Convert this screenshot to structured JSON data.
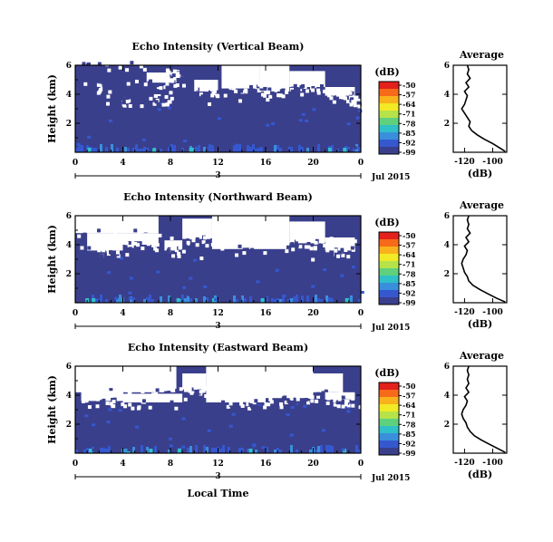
{
  "chart_data": [
    {
      "type": "heatmap",
      "title": "Echo Intensity (Vertical Beam)",
      "ylabel": "Height (km)",
      "x_ticks": [
        "0",
        "4",
        "8",
        "12",
        "16",
        "20",
        "0"
      ],
      "y_ticks": [
        "6",
        "4",
        "2"
      ],
      "xlim": [
        0,
        24
      ],
      "ylim": [
        0,
        6
      ],
      "date_marker": "3",
      "date_label": "Jul 2015",
      "colorbar": {
        "unit": "(dB)",
        "labels": [
          "-50",
          "-57",
          "-64",
          "-71",
          "-78",
          "-85",
          "-92",
          "-99"
        ]
      },
      "noise_top_km": 3.7,
      "gaps": [
        [
          0.5,
          5.8,
          6,
          6
        ],
        [
          2,
          1.8,
          4.5,
          5.2
        ],
        [
          4.5,
          3.8,
          3.6,
          4.2
        ],
        [
          6,
          8.5,
          4.8,
          5.5
        ],
        [
          8,
          6.5,
          3.7,
          4.1
        ],
        [
          9,
          7.5,
          5.5,
          6
        ],
        [
          10,
          12,
          4.2,
          5
        ],
        [
          12.3,
          15.5,
          4.4,
          6
        ],
        [
          15.5,
          18,
          4.2,
          6
        ],
        [
          18,
          21,
          4.5,
          5.6
        ],
        [
          21,
          23.5,
          3.9,
          4.5
        ],
        [
          23,
          23.8,
          3.5,
          3.9
        ]
      ],
      "average": {
        "title": "Average",
        "xlabel": "(dB)",
        "x_ticks": [
          "-120",
          "-100"
        ],
        "y_ticks": [
          "6",
          "4",
          "2"
        ],
        "xlim": [
          -128,
          -90
        ],
        "ylim": [
          0,
          6
        ],
        "x": [
          -91,
          -95,
          -100,
          -106,
          -111,
          -115,
          -117,
          -116,
          -118,
          -120,
          -122,
          -120,
          -119,
          -118,
          -120,
          -117,
          -119,
          -116,
          -118,
          -117,
          -118
        ],
        "y": [
          0.05,
          0.3,
          0.6,
          0.9,
          1.2,
          1.5,
          1.8,
          2.1,
          2.4,
          2.7,
          3.0,
          3.3,
          3.6,
          3.9,
          4.2,
          4.5,
          4.8,
          5.1,
          5.4,
          5.7,
          6.0
        ]
      }
    },
    {
      "type": "heatmap",
      "title": "Echo Intensity (Northward Beam)",
      "ylabel": "Height (km)",
      "x_ticks": [
        "0",
        "4",
        "8",
        "12",
        "16",
        "20",
        "0"
      ],
      "y_ticks": [
        "6",
        "4",
        "2"
      ],
      "xlim": [
        0,
        24
      ],
      "ylim": [
        0,
        6
      ],
      "date_marker": "3",
      "date_label": "Jul 2015",
      "colorbar": {
        "unit": "(dB)",
        "labels": [
          "-50",
          "-57",
          "-64",
          "-71",
          "-78",
          "-85",
          "-92",
          "-99"
        ]
      },
      "noise_top_km": 3.4,
      "gaps": [
        [
          0,
          7,
          4.8,
          6
        ],
        [
          1,
          4,
          3.6,
          4.8
        ],
        [
          4,
          7,
          4,
          4.8
        ],
        [
          7.5,
          9,
          3.6,
          4.3
        ],
        [
          9,
          11.5,
          4.4,
          5.8
        ],
        [
          11.5,
          18,
          3.7,
          6
        ],
        [
          18,
          21,
          4.1,
          5.6
        ],
        [
          21,
          23.5,
          3.6,
          4.5
        ]
      ],
      "average": {
        "title": "Average",
        "xlabel": "(dB)",
        "x_ticks": [
          "-120",
          "-100"
        ],
        "y_ticks": [
          "6",
          "4",
          "2"
        ],
        "xlim": [
          -128,
          -90
        ],
        "ylim": [
          0,
          6
        ],
        "x": [
          -91,
          -97,
          -103,
          -109,
          -114,
          -117,
          -118,
          -120,
          -121,
          -122,
          -121,
          -119,
          -118,
          -120,
          -117,
          -119,
          -116,
          -118,
          -117,
          -118,
          -117
        ],
        "y": [
          0.05,
          0.3,
          0.6,
          0.9,
          1.2,
          1.5,
          1.8,
          2.1,
          2.4,
          2.7,
          3.0,
          3.3,
          3.6,
          3.9,
          4.2,
          4.5,
          4.8,
          5.1,
          5.4,
          5.7,
          6.0
        ]
      }
    },
    {
      "type": "heatmap",
      "title": "Echo Intensity (Eastward Beam)",
      "ylabel": "Height (km)",
      "x_ticks": [
        "0",
        "4",
        "8",
        "12",
        "16",
        "20",
        "0"
      ],
      "y_ticks": [
        "6",
        "4",
        "2"
      ],
      "xlim": [
        0,
        24
      ],
      "ylim": [
        0,
        6
      ],
      "date_marker": "3",
      "date_label": "Jul 2015",
      "colorbar": {
        "unit": "(dB)",
        "labels": [
          "-50",
          "-57",
          "-64",
          "-71",
          "-78",
          "-85",
          "-92",
          "-99"
        ]
      },
      "noise_top_km": 3.6,
      "gaps": [
        [
          0,
          8.5,
          4.2,
          6
        ],
        [
          0.5,
          4,
          3.6,
          4.3
        ],
        [
          4,
          9,
          3.5,
          4.1
        ],
        [
          9,
          11,
          4.4,
          5.5
        ],
        [
          11,
          16,
          3.5,
          6
        ],
        [
          16,
          20,
          3.8,
          6
        ],
        [
          20,
          22.5,
          4.2,
          5.5
        ],
        [
          21,
          23.5,
          3.7,
          4.2
        ]
      ],
      "average": {
        "title": "Average",
        "xlabel": "(dB)",
        "x_ticks": [
          "-120",
          "-100"
        ],
        "y_ticks": [
          "6",
          "4",
          "2"
        ],
        "xlim": [
          -128,
          -90
        ],
        "ylim": [
          0,
          6
        ],
        "x": [
          -91,
          -96,
          -102,
          -108,
          -113,
          -116,
          -118,
          -119,
          -121,
          -122,
          -121,
          -119,
          -118,
          -120,
          -117,
          -119,
          -117,
          -118,
          -117,
          -118,
          -117
        ],
        "y": [
          0.05,
          0.3,
          0.6,
          0.9,
          1.2,
          1.5,
          1.8,
          2.1,
          2.4,
          2.7,
          3.0,
          3.3,
          3.6,
          3.9,
          4.2,
          4.5,
          4.8,
          5.1,
          5.4,
          5.7,
          6.0
        ]
      }
    }
  ],
  "footer": {
    "xlabel": "Local Time"
  },
  "colors": {
    "background_field": "#3a3f8c",
    "gap": "#ffffff",
    "scale": [
      "#e3201c",
      "#f66a1a",
      "#f9b21c",
      "#f2ea25",
      "#b6e34a",
      "#5fd17d",
      "#2fc0c8",
      "#3a8fdc",
      "#3558cf",
      "#3a3f8c"
    ]
  }
}
